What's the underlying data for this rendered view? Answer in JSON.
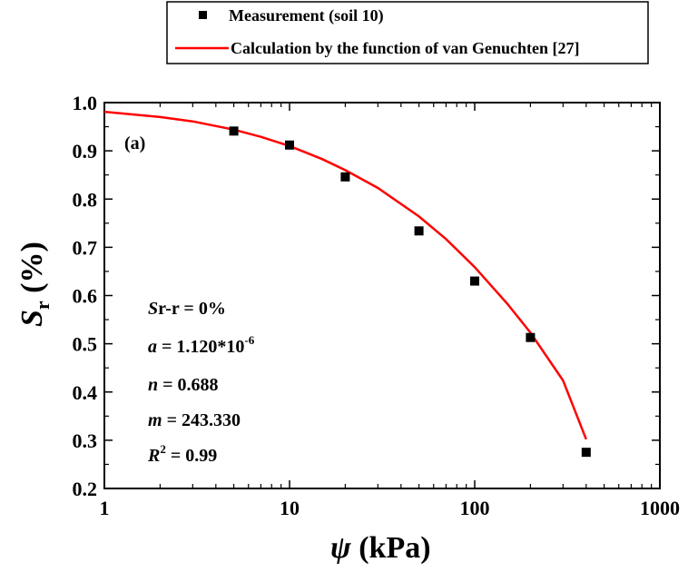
{
  "chart_data": {
    "type": "scatter",
    "xscale": "log",
    "xlim": [
      1,
      1000
    ],
    "ylim": [
      0.2,
      1.0
    ],
    "grid": false,
    "legend_position": "top",
    "xticks": [
      1,
      10,
      100,
      1000
    ],
    "xtick_labels": [
      "1",
      "10",
      "100",
      "1000"
    ],
    "yticks": [
      0.2,
      0.3,
      0.4,
      0.5,
      0.6,
      0.7,
      0.8,
      0.9,
      1.0
    ],
    "ytick_labels": [
      "0.2",
      "0.3",
      "0.4",
      "0.5",
      "0.6",
      "0.7",
      "0.8",
      "0.9",
      "1.0"
    ],
    "xlabel": {
      "symbol": "ψ",
      "unit": " (kPa)"
    },
    "ylabel": {
      "symbol": "S",
      "subscript": "r",
      "unit": " (%)"
    },
    "panel_label": "(a)",
    "series": [
      {
        "name": "Measurement (soil 10)",
        "kind": "markers",
        "marker": "square",
        "color": "#000000",
        "x": [
          5,
          10,
          20,
          50,
          100,
          200,
          400
        ],
        "y": [
          0.941,
          0.912,
          0.846,
          0.734,
          0.63,
          0.513,
          0.275
        ]
      },
      {
        "name": "Calculation by the function of van Genuchten [27]",
        "kind": "line",
        "color": "#ff0000",
        "x": [
          1,
          2,
          3,
          5,
          7,
          10,
          15,
          20,
          30,
          50,
          70,
          100,
          150,
          200,
          300,
          400
        ],
        "y": [
          0.981,
          0.97,
          0.961,
          0.944,
          0.929,
          0.91,
          0.883,
          0.86,
          0.823,
          0.764,
          0.717,
          0.659,
          0.583,
          0.523,
          0.424,
          0.302
        ]
      }
    ],
    "annotations": [
      {
        "italic": "S",
        "text": "r-r = 0%"
      },
      {
        "italic": "a",
        "text": " = 1.120*10",
        "sup": "-6"
      },
      {
        "italic": "n",
        "text": " = 0.688"
      },
      {
        "italic": "m",
        "text": " = 243.330"
      },
      {
        "italic": "R",
        "sup": "2",
        "text": " = 0.99"
      }
    ]
  }
}
